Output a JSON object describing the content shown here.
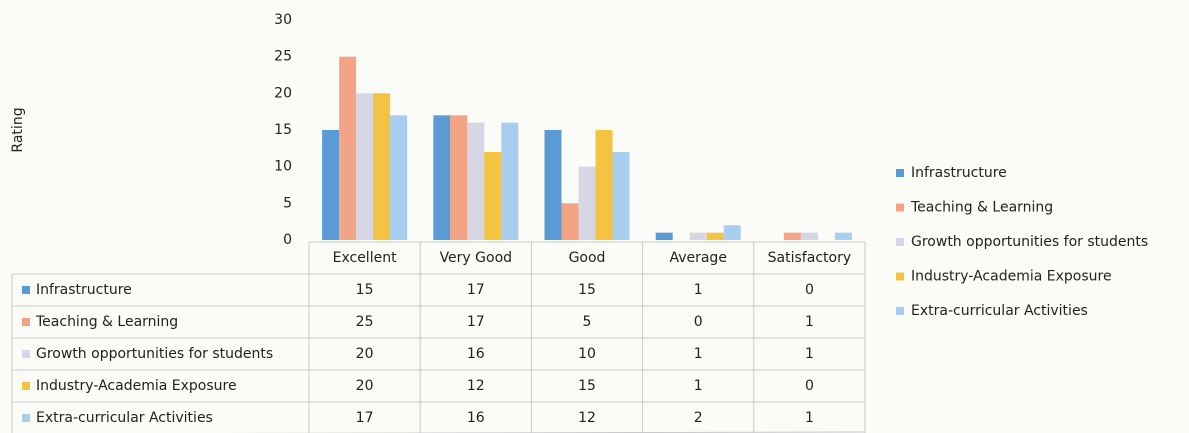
{
  "chart_data": {
    "type": "bar",
    "y_label": "Rating",
    "categories": [
      "Excellent",
      "Very Good",
      "Good",
      "Average",
      "Satisfactory"
    ],
    "series": [
      {
        "name": "Infrastructure",
        "color": "#5b9bd5",
        "values": [
          15,
          17,
          15,
          1,
          0
        ]
      },
      {
        "name": "Teaching & Learning",
        "color": "#f2a485",
        "values": [
          25,
          17,
          5,
          0,
          1
        ]
      },
      {
        "name": "Growth opportunities for students",
        "color": "#d6d6e4",
        "values": [
          20,
          16,
          10,
          1,
          1
        ]
      },
      {
        "name": "Industry-Academia Exposure",
        "color": "#f5c342",
        "values": [
          20,
          12,
          15,
          1,
          0
        ]
      },
      {
        "name": "Extra-curricular Activities",
        "color": "#a8cdef",
        "values": [
          17,
          16,
          12,
          2,
          1
        ]
      }
    ],
    "ylim": [
      0,
      30
    ],
    "yticks": [
      0,
      5,
      10,
      15,
      20,
      25,
      30
    ],
    "grid": false,
    "legend": "right",
    "data_table": true
  }
}
